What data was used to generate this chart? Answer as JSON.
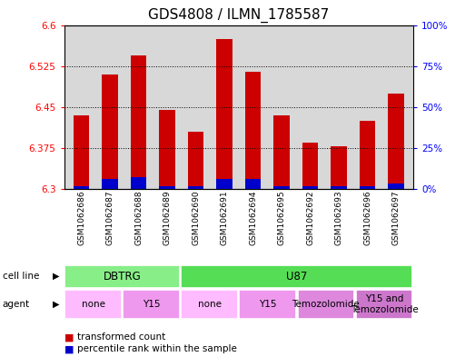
{
  "title": "GDS4808 / ILMN_1785587",
  "samples": [
    "GSM1062686",
    "GSM1062687",
    "GSM1062688",
    "GSM1062689",
    "GSM1062690",
    "GSM1062691",
    "GSM1062694",
    "GSM1062695",
    "GSM1062692",
    "GSM1062693",
    "GSM1062696",
    "GSM1062697"
  ],
  "red_values": [
    6.435,
    6.51,
    6.545,
    6.445,
    6.405,
    6.575,
    6.515,
    6.435,
    6.385,
    6.378,
    6.425,
    6.475
  ],
  "blue_values": [
    0.005,
    0.018,
    0.022,
    0.005,
    0.005,
    0.018,
    0.018,
    0.005,
    0.005,
    0.005,
    0.005,
    0.01
  ],
  "ymin": 6.3,
  "ymax": 6.6,
  "yticks": [
    6.3,
    6.375,
    6.45,
    6.525,
    6.6
  ],
  "yticks_right": [
    0,
    25,
    50,
    75,
    100
  ],
  "bar_color_red": "#cc0000",
  "bar_color_blue": "#0000cc",
  "bar_width": 0.55,
  "cell_line_groups": [
    {
      "label": "DBTRG",
      "start": 0,
      "end": 3,
      "color": "#88ee88"
    },
    {
      "label": "U87",
      "start": 4,
      "end": 11,
      "color": "#55dd55"
    }
  ],
  "agent_groups": [
    {
      "label": "none",
      "start": 0,
      "end": 1,
      "color": "#ffbbff"
    },
    {
      "label": "Y15",
      "start": 2,
      "end": 3,
      "color": "#ee99ee"
    },
    {
      "label": "none",
      "start": 4,
      "end": 5,
      "color": "#ffbbff"
    },
    {
      "label": "Y15",
      "start": 6,
      "end": 7,
      "color": "#ee99ee"
    },
    {
      "label": "Temozolomide",
      "start": 8,
      "end": 9,
      "color": "#dd88dd"
    },
    {
      "label": "Y15 and\nTemozolomide",
      "start": 10,
      "end": 11,
      "color": "#cc77cc"
    }
  ],
  "bg_color": "#d8d8d8",
  "grid_color": "#000000",
  "title_fontsize": 11,
  "tick_fontsize": 7.5,
  "sample_fontsize": 6.5,
  "label_fontsize": 8.5
}
